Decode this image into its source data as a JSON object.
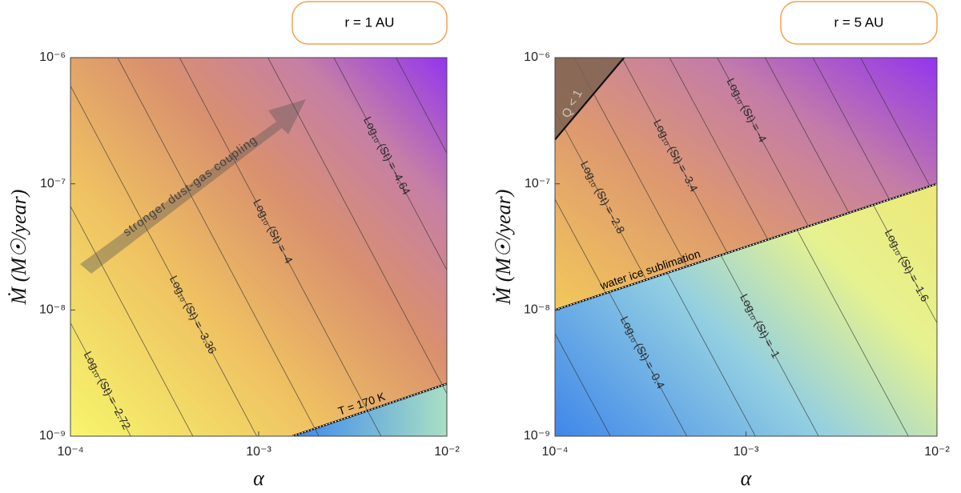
{
  "chart_data": [
    {
      "type": "contour",
      "title": "r = 1 AU",
      "xlabel": "α",
      "ylabel": "Ṁ (M☉/year)",
      "xscale": "log",
      "yscale": "log",
      "xlim": [
        0.0001,
        0.01
      ],
      "ylim": [
        1e-09,
        1e-06
      ],
      "xticks": [
        {
          "value": 0.0001,
          "label": "10⁻⁴"
        },
        {
          "value": 0.001,
          "label": "10⁻³"
        },
        {
          "value": 0.01,
          "label": "10⁻²"
        }
      ],
      "yticks": [
        {
          "value": 1e-09,
          "label": "10⁻⁹"
        },
        {
          "value": 1e-08,
          "label": "10⁻⁸"
        },
        {
          "value": 1e-07,
          "label": "10⁻⁷"
        },
        {
          "value": 1e-06,
          "label": "10⁻⁶"
        }
      ],
      "contours": [
        {
          "label": "Log₁₀ (St) = -2.72",
          "x": [
            1.78e-05,
            0.000209
          ],
          "y": [
            1e-06,
            1e-09
          ]
        },
        {
          "x": [
            3.8e-05,
            0.000447
          ],
          "y": [
            1e-06,
            1e-09
          ]
        },
        {
          "label": "Log₁₀ (St) = -3.36",
          "x": [
            8.32e-05,
            0.000977
          ],
          "y": [
            1e-06,
            1e-09
          ]
        },
        {
          "x": [
            0.000178,
            0.00209
          ],
          "y": [
            1e-06,
            1e-09
          ]
        },
        {
          "label": "Log₁₀ (St) = -4",
          "x": [
            0.00038,
            0.00447
          ],
          "y": [
            1e-06,
            1e-09
          ]
        },
        {
          "x": [
            0.00112,
            0.0132
          ],
          "y": [
            1e-06,
            1e-09
          ]
        },
        {
          "label": "Log₁₀ (St) = -4.64",
          "x": [
            0.00251,
            0.0295
          ],
          "y": [
            1e-06,
            1e-09
          ]
        },
        {
          "x": [
            0.00537,
            0.0631
          ],
          "y": [
            1e-06,
            1e-09
          ]
        }
      ],
      "boundary": {
        "label": "T = 170 K",
        "x": [
          0.00151,
          0.01
        ],
        "y": [
          1e-09,
          2.6e-09
        ]
      },
      "annotation": "stronger dust-gas coupling"
    },
    {
      "type": "contour",
      "title": "r = 5 AU",
      "xlabel": "α",
      "ylabel": "Ṁ (M☉/year)",
      "xscale": "log",
      "yscale": "log",
      "xlim": [
        0.0001,
        0.01
      ],
      "ylim": [
        1e-09,
        1e-06
      ],
      "xticks": [
        {
          "value": 0.0001,
          "label": "10⁻⁴"
        },
        {
          "value": 0.001,
          "label": "10⁻³"
        },
        {
          "value": 0.01,
          "label": "10⁻²"
        }
      ],
      "yticks": [
        {
          "value": 1e-09,
          "label": "10⁻⁹"
        },
        {
          "value": 1e-08,
          "label": "10⁻⁸"
        },
        {
          "value": 1e-07,
          "label": "10⁻⁷"
        },
        {
          "value": 1e-06,
          "label": "10⁻⁶"
        }
      ],
      "contours": [
        {
          "side": "above",
          "x": [
            3.98e-05,
            0.000468
          ],
          "y": [
            1e-06,
            1e-09
          ]
        },
        {
          "side": "above",
          "label": "Log₁₀ (St) = -2.8",
          "x": [
            7.08e-05,
            0.000832
          ],
          "y": [
            1e-06,
            1e-09
          ]
        },
        {
          "side": "above",
          "x": [
            0.000126,
            0.00148
          ],
          "y": [
            1e-06,
            1e-09
          ]
        },
        {
          "side": "above",
          "label": "Log₁₀ (St) = -3.4",
          "x": [
            0.000224,
            0.00263
          ],
          "y": [
            1e-06,
            1e-09
          ]
        },
        {
          "side": "above",
          "x": [
            0.000398,
            0.00468
          ],
          "y": [
            1e-06,
            1e-09
          ]
        },
        {
          "side": "above",
          "label": "Log₁₀ (St) = -4",
          "x": [
            0.000708,
            0.00832
          ],
          "y": [
            1e-06,
            1e-09
          ]
        },
        {
          "side": "above",
          "x": [
            0.00126,
            0.0148
          ],
          "y": [
            1e-06,
            1e-09
          ]
        },
        {
          "side": "above",
          "x": [
            0.00224,
            0.0263
          ],
          "y": [
            1e-06,
            1e-09
          ]
        },
        {
          "side": "above",
          "x": [
            0.00398,
            0.0468
          ],
          "y": [
            1e-06,
            1e-09
          ]
        },
        {
          "side": "below",
          "x": [
            1.66e-05,
            0.000195
          ],
          "y": [
            1e-06,
            1e-09
          ]
        },
        {
          "side": "below",
          "label": "Log₁₀ (St) = -0.4",
          "x": [
            4.17e-05,
            0.00049
          ],
          "y": [
            1e-06,
            1e-09
          ]
        },
        {
          "side": "below",
          "x": [
            9.55e-05,
            0.00112
          ],
          "y": [
            1e-06,
            1e-09
          ]
        },
        {
          "side": "below",
          "label": "Log₁₀ (St) = -1",
          "x": [
            0.000204,
            0.0024
          ],
          "y": [
            1e-06,
            1e-09
          ]
        },
        {
          "side": "below",
          "x": [
            0.000603,
            0.00708
          ],
          "y": [
            1e-06,
            1e-09
          ]
        },
        {
          "side": "below",
          "label": "Log₁₀ (St) = -1.6",
          "x": [
            0.00178,
            0.0209
          ],
          "y": [
            1e-06,
            1e-09
          ]
        },
        {
          "side": "below",
          "x": [
            0.00501,
            0.0589
          ],
          "y": [
            1e-06,
            1e-09
          ]
        }
      ],
      "boundary": {
        "label": "water ice sublimation",
        "x": [
          0.0001,
          0.01
        ],
        "y": [
          1e-08,
          1e-07
        ]
      },
      "region": {
        "label": "Q < 1",
        "x": [
          0.0001,
          0.00023
        ],
        "y": [
          2.24e-07,
          1e-06
        ]
      }
    }
  ]
}
